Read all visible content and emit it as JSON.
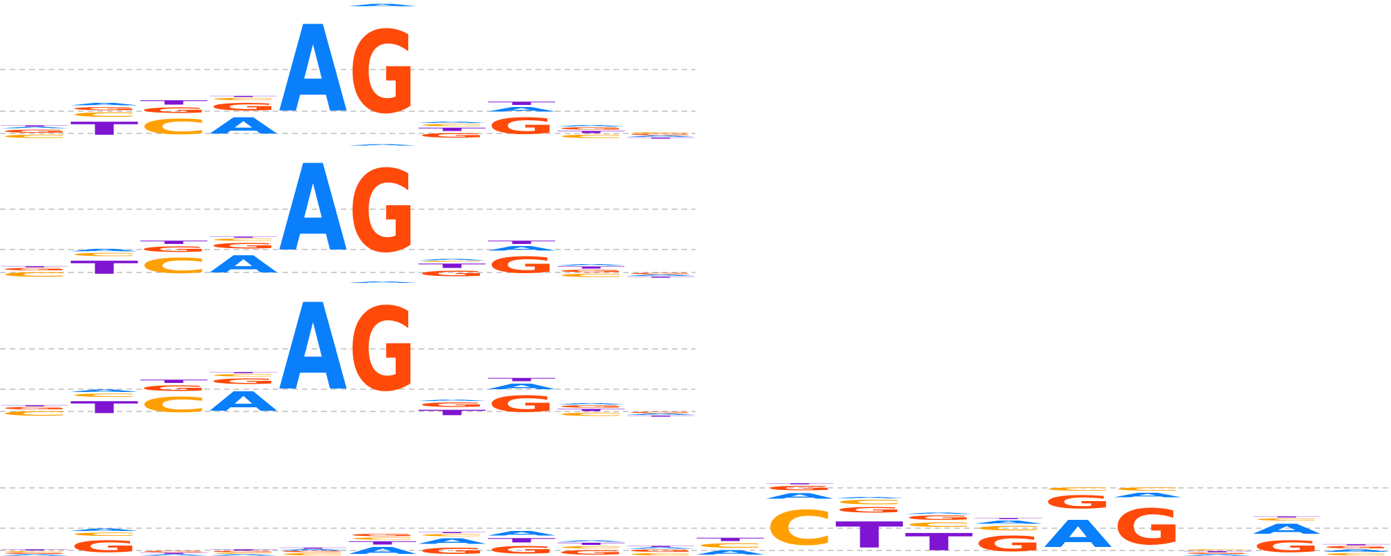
{
  "colors": {
    "A": "#0a7ffb",
    "C": "#ffa000",
    "G": "#ff4a0a",
    "T": "#7f14d1",
    "gridline": "#b0b0b0"
  },
  "letter_glyph_font": "DejaVu Sans",
  "logos": [
    {
      "name": "logo-1",
      "columns": [
        [
          [
            "C",
            0.03
          ],
          [
            "G",
            0.03
          ],
          [
            "A",
            0.01
          ],
          [
            "T",
            0.01
          ]
        ],
        [
          [
            "T",
            0.12
          ],
          [
            "C",
            0.04
          ],
          [
            "G",
            0.03
          ],
          [
            "A",
            0.02
          ]
        ],
        [
          [
            "C",
            0.14
          ],
          [
            "G",
            0.05
          ],
          [
            "T",
            0.04
          ]
        ],
        [
          [
            "A",
            0.15
          ],
          [
            "G",
            0.07
          ],
          [
            "C",
            0.02
          ],
          [
            "T",
            0.01
          ]
        ],
        [
          [
            "A",
            0.8
          ]
        ],
        [
          [
            "G",
            0.76
          ],
          [
            "A",
            0.02
          ]
        ],
        [
          [
            "T",
            0.03
          ],
          [
            "G",
            0.04
          ],
          [
            "C",
            0.02
          ],
          [
            "A",
            0.01
          ]
        ],
        [
          [
            "G",
            0.15
          ],
          [
            "A",
            0.04
          ],
          [
            "T",
            0.03
          ]
        ],
        [
          [
            "C",
            0.03
          ],
          [
            "T",
            0.02
          ],
          [
            "G",
            0.02
          ],
          [
            "A",
            0.01
          ]
        ],
        [
          [
            "T",
            0.01
          ],
          [
            "A",
            0.01
          ],
          [
            "G",
            0.01
          ],
          [
            "C",
            0.01
          ]
        ]
      ]
    },
    {
      "name": "logo-2",
      "columns": [
        [
          [
            "C",
            0.04
          ],
          [
            "G",
            0.02
          ],
          [
            "T",
            0.01
          ]
        ],
        [
          [
            "T",
            0.12
          ],
          [
            "C",
            0.03
          ],
          [
            "A",
            0.02
          ]
        ],
        [
          [
            "C",
            0.14
          ],
          [
            "G",
            0.05
          ],
          [
            "T",
            0.03
          ]
        ],
        [
          [
            "A",
            0.16
          ],
          [
            "G",
            0.05
          ],
          [
            "C",
            0.02
          ],
          [
            "T",
            0.01
          ]
        ],
        [
          [
            "A",
            0.8
          ]
        ],
        [
          [
            "G",
            0.76
          ],
          [
            "A",
            0.01
          ]
        ],
        [
          [
            "T",
            0.04
          ],
          [
            "G",
            0.05
          ],
          [
            "C",
            0.01
          ],
          [
            "A",
            0.01
          ]
        ],
        [
          [
            "G",
            0.15
          ],
          [
            "A",
            0.04
          ],
          [
            "T",
            0.03
          ]
        ],
        [
          [
            "C",
            0.03
          ],
          [
            "G",
            0.02
          ],
          [
            "T",
            0.02
          ],
          [
            "A",
            0.01
          ]
        ],
        [
          [
            "T",
            0.01
          ],
          [
            "A",
            0.01
          ],
          [
            "G",
            0.01
          ]
        ]
      ]
    },
    {
      "name": "logo-3",
      "columns": [
        [
          [
            "C",
            0.04
          ],
          [
            "G",
            0.02
          ],
          [
            "T",
            0.01
          ]
        ],
        [
          [
            "T",
            0.11
          ],
          [
            "C",
            0.03
          ],
          [
            "A",
            0.02
          ]
        ],
        [
          [
            "C",
            0.14
          ],
          [
            "G",
            0.05
          ],
          [
            "T",
            0.03
          ]
        ],
        [
          [
            "A",
            0.18
          ],
          [
            "G",
            0.05
          ],
          [
            "C",
            0.02
          ],
          [
            "T",
            0.01
          ]
        ],
        [
          [
            "A",
            0.8
          ]
        ],
        [
          [
            "G",
            0.77
          ],
          [
            "A",
            0.01
          ]
        ],
        [
          [
            "T",
            0.05
          ],
          [
            "G",
            0.04
          ],
          [
            "A",
            0.01
          ]
        ],
        [
          [
            "G",
            0.15
          ],
          [
            "A",
            0.05
          ],
          [
            "T",
            0.03
          ]
        ],
        [
          [
            "C",
            0.03
          ],
          [
            "T",
            0.02
          ],
          [
            "G",
            0.02
          ],
          [
            "A",
            0.01
          ]
        ],
        [
          [
            "T",
            0.01
          ],
          [
            "A",
            0.01
          ],
          [
            "G",
            0.01
          ]
        ]
      ]
    },
    {
      "name": "logo-4",
      "columns": [
        [
          [
            "A",
            0.01
          ],
          [
            "G",
            0.01
          ],
          [
            "C",
            0.01
          ],
          [
            "T",
            0.01
          ]
        ],
        [
          [
            "G",
            0.11
          ],
          [
            "C",
            0.03
          ],
          [
            "A",
            0.02
          ]
        ],
        [
          [
            "A",
            0.01
          ],
          [
            "T",
            0.01
          ],
          [
            "G",
            0.01
          ]
        ],
        [
          [
            "A",
            0.01
          ],
          [
            "C",
            0.01
          ],
          [
            "G",
            0.01
          ],
          [
            "T",
            0.01
          ]
        ],
        [
          [
            "C",
            0.02
          ],
          [
            "G",
            0.01
          ],
          [
            "A",
            0.01
          ],
          [
            "T",
            0.01
          ]
        ],
        [
          [
            "A",
            0.06
          ],
          [
            "T",
            0.03
          ],
          [
            "C",
            0.02
          ],
          [
            "G",
            0.02
          ]
        ],
        [
          [
            "G",
            0.06
          ],
          [
            "A",
            0.05
          ],
          [
            "C",
            0.02
          ],
          [
            "T",
            0.01
          ]
        ],
        [
          [
            "G",
            0.07
          ],
          [
            "T",
            0.04
          ],
          [
            "A",
            0.04
          ]
        ],
        [
          [
            "G",
            0.04
          ],
          [
            "C",
            0.02
          ],
          [
            "T",
            0.02
          ],
          [
            "A",
            0.01
          ]
        ],
        [
          [
            "C",
            0.02
          ],
          [
            "G",
            0.02
          ],
          [
            "A",
            0.01
          ],
          [
            "T",
            0.01
          ]
        ],
        [
          [
            "A",
            0.04
          ],
          [
            "C",
            0.04
          ],
          [
            "T",
            0.03
          ]
        ],
        [
          [
            "C",
            0.32
          ],
          [
            "A",
            0.05
          ],
          [
            "G",
            0.04
          ],
          [
            "T",
            0.01
          ]
        ],
        [
          [
            "T",
            0.24
          ],
          [
            "G",
            0.05
          ],
          [
            "C",
            0.04
          ],
          [
            "A",
            0.01
          ]
        ],
        [
          [
            "T",
            0.16
          ],
          [
            "C",
            0.04
          ],
          [
            "G",
            0.04
          ],
          [
            "A",
            0.01
          ]
        ],
        [
          [
            "G",
            0.14
          ],
          [
            "C",
            0.04
          ],
          [
            "A",
            0.03
          ],
          [
            "T",
            0.01
          ]
        ],
        [
          [
            "A",
            0.25
          ],
          [
            "C",
            0.03
          ],
          [
            "G",
            0.12
          ]
        ],
        [
          [
            "G",
            0.33
          ],
          [
            "C",
            0.03
          ],
          [
            "A",
            0.04
          ]
        ],
        [
          [
            "A",
            0.01
          ],
          [
            "G",
            0.01
          ],
          [
            "T",
            0.01
          ],
          [
            "C",
            0.01
          ]
        ],
        [
          [
            "G",
            0.11
          ],
          [
            "A",
            0.09
          ],
          [
            "C",
            0.02
          ],
          [
            "T",
            0.01
          ]
        ],
        [
          [
            "C",
            0.02
          ],
          [
            "A",
            0.02
          ],
          [
            "G",
            0.02
          ],
          [
            "T",
            0.01
          ]
        ]
      ]
    }
  ]
}
